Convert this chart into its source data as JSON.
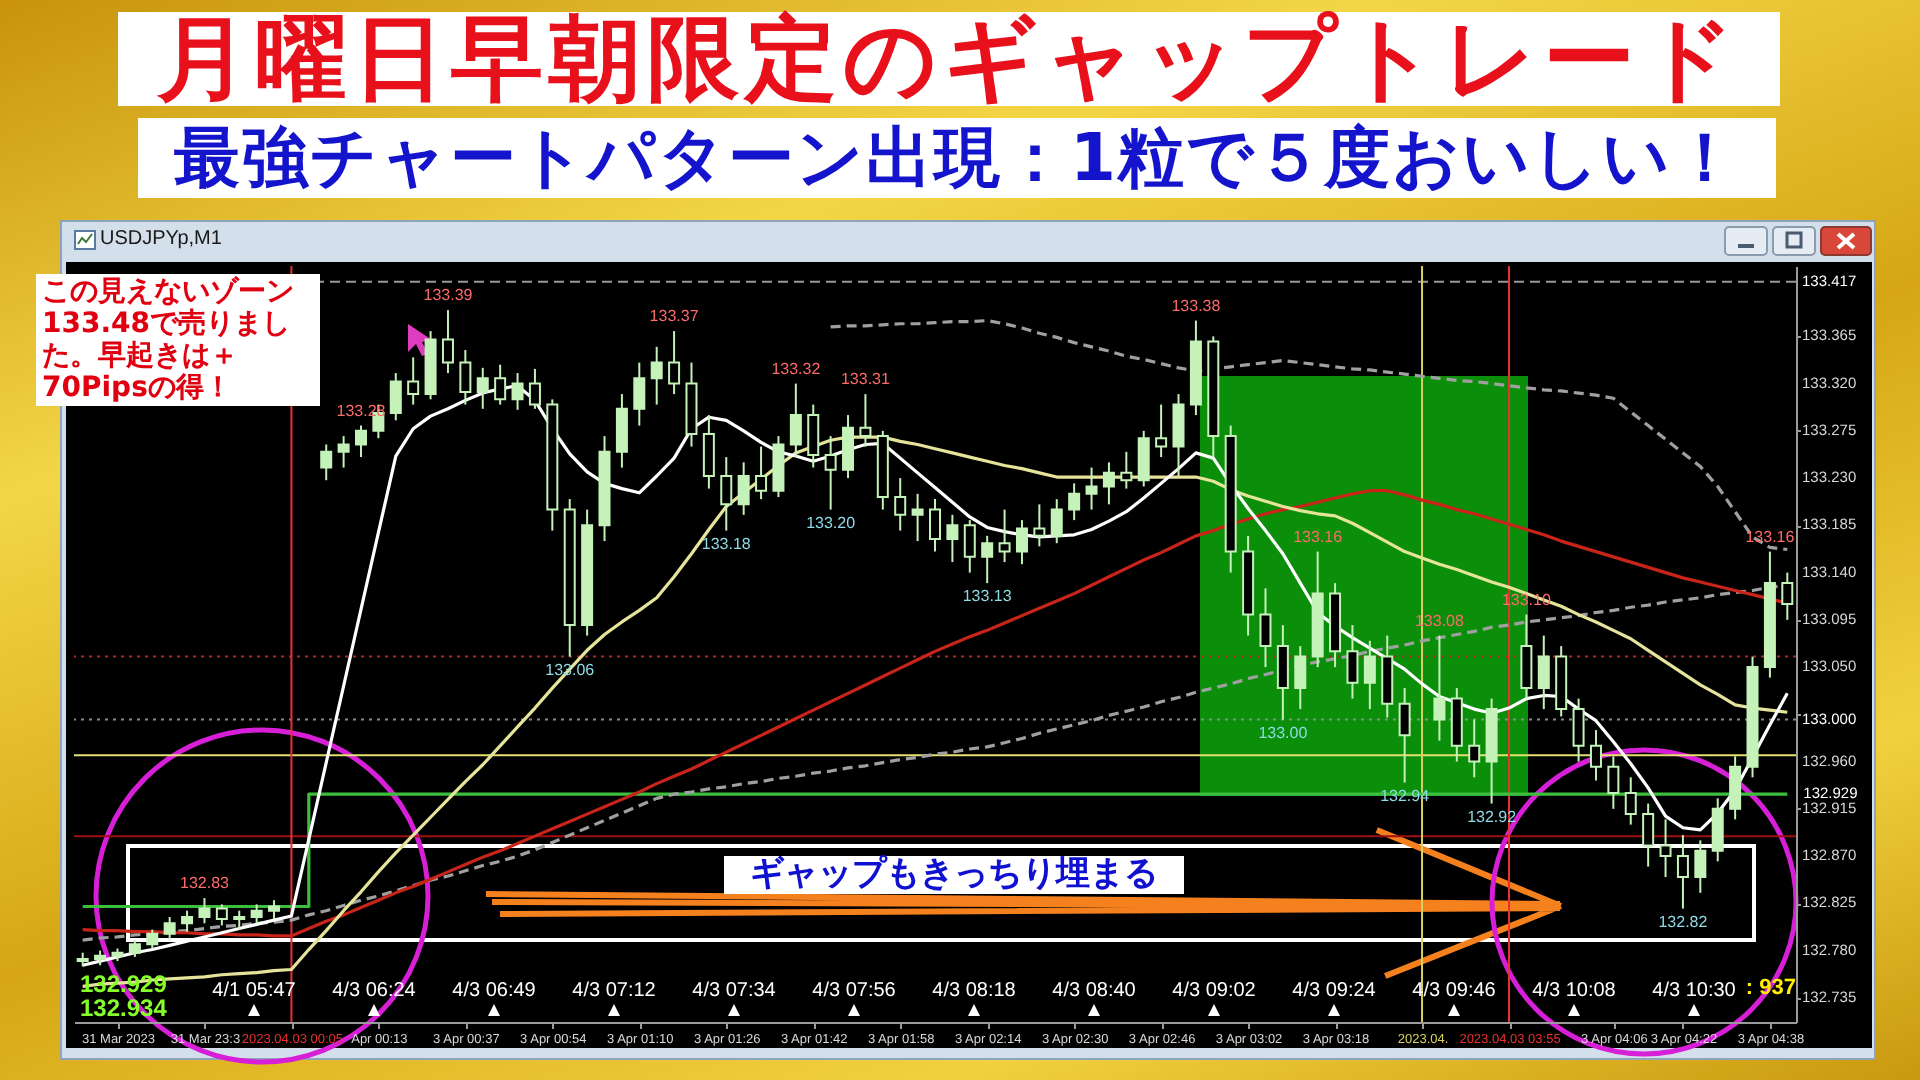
{
  "chart_data": {
    "type": "candlestick",
    "title": "月曜日早朝限定のギャップトレード",
    "subtitle": "最強チャートパターン出現：1粒で５度おいしい！",
    "color": "#c4f2b8",
    "categories": [
      null,
      null,
      "31 Mar 2023",
      null,
      null,
      null,
      null,
      "31 Mar 23:3",
      null,
      null,
      null,
      null,
      "2023.04.03 00:05",
      null,
      null,
      null,
      null,
      "Apr 00:13",
      null,
      null,
      null,
      null,
      "3 Apr 00:37",
      null,
      null,
      null,
      null,
      "3 Apr 00:54",
      null,
      null,
      null,
      null,
      "3 Apr 01:10",
      null,
      null,
      null,
      null,
      "3 Apr 01:26",
      null,
      null,
      null,
      null,
      "3 Apr 01:42",
      null,
      null,
      null,
      null,
      "3 Apr 01:58",
      null,
      null,
      null,
      null,
      "3 Apr 02:14",
      null,
      null,
      null,
      null,
      "3 Apr 02:30",
      null,
      null,
      null,
      null,
      "3 Apr 02:46",
      null,
      null,
      null,
      null,
      "3 Apr 03:02",
      null,
      null,
      null,
      null,
      "3 Apr 03:18",
      null,
      null,
      null,
      null,
      "2023.04.",
      null,
      null,
      null,
      null,
      "2023.04.03 03:55",
      null,
      null,
      null,
      null,
      null,
      "3 Apr 04:06",
      null,
      null,
      null,
      "3 Apr 04:22",
      null,
      null,
      null,
      null,
      "3 Apr 04:38",
      null
    ],
    "ohlc": [
      [
        132.77,
        132.778,
        132.765,
        132.772
      ],
      [
        132.772,
        132.78,
        132.766,
        132.775
      ],
      [
        132.775,
        132.782,
        132.77,
        132.778
      ],
      [
        132.778,
        132.79,
        132.774,
        132.786
      ],
      [
        132.786,
        132.8,
        132.782,
        132.796
      ],
      [
        132.796,
        132.812,
        132.79,
        132.806
      ],
      [
        132.806,
        132.818,
        132.798,
        132.812
      ],
      [
        132.812,
        132.83,
        132.806,
        132.82
      ],
      [
        132.82,
        132.824,
        132.804,
        132.81
      ],
      [
        132.81,
        132.818,
        132.8,
        132.812
      ],
      [
        132.812,
        132.824,
        132.806,
        132.818
      ],
      [
        132.818,
        132.828,
        132.81,
        132.822
      ],
      null,
      null,
      [
        133.24,
        133.262,
        133.228,
        133.255
      ],
      [
        133.255,
        133.27,
        133.24,
        133.262
      ],
      [
        133.262,
        133.28,
        133.25,
        133.275
      ],
      [
        133.275,
        133.3,
        133.268,
        133.292
      ],
      [
        133.292,
        133.33,
        133.285,
        133.322
      ],
      [
        133.322,
        133.345,
        133.3,
        133.31
      ],
      [
        133.31,
        133.37,
        133.305,
        133.362
      ],
      [
        133.362,
        133.39,
        133.33,
        133.34
      ],
      [
        133.34,
        133.352,
        133.3,
        133.312
      ],
      [
        133.312,
        133.335,
        133.296,
        133.325
      ],
      [
        133.325,
        133.338,
        133.3,
        133.305
      ],
      [
        133.305,
        133.33,
        133.295,
        133.32
      ],
      [
        133.32,
        133.334,
        133.296,
        133.3
      ],
      [
        133.3,
        133.305,
        133.18,
        133.2
      ],
      [
        133.2,
        133.21,
        133.06,
        133.09
      ],
      [
        133.09,
        133.2,
        133.08,
        133.185
      ],
      [
        133.185,
        133.27,
        133.17,
        133.255
      ],
      [
        133.255,
        133.31,
        133.24,
        133.296
      ],
      [
        133.296,
        133.34,
        133.28,
        133.325
      ],
      [
        133.325,
        133.355,
        133.3,
        133.34
      ],
      [
        133.34,
        133.37,
        133.31,
        133.32
      ],
      [
        133.32,
        133.34,
        133.26,
        133.272
      ],
      [
        133.272,
        133.29,
        133.22,
        133.232
      ],
      [
        133.232,
        133.25,
        133.18,
        133.205
      ],
      [
        133.205,
        133.245,
        133.195,
        133.232
      ],
      [
        133.232,
        133.26,
        133.21,
        133.218
      ],
      [
        133.218,
        133.27,
        133.212,
        133.262
      ],
      [
        133.262,
        133.32,
        133.25,
        133.29
      ],
      [
        133.29,
        133.3,
        133.24,
        133.252
      ],
      [
        133.252,
        133.27,
        133.2,
        133.238
      ],
      [
        133.238,
        133.29,
        133.23,
        133.278
      ],
      [
        133.278,
        133.31,
        133.26,
        133.27
      ],
      [
        133.27,
        133.275,
        133.2,
        133.212
      ],
      [
        133.212,
        133.23,
        133.18,
        133.195
      ],
      [
        133.195,
        133.215,
        133.17,
        133.2
      ],
      [
        133.2,
        133.21,
        133.16,
        133.172
      ],
      [
        133.172,
        133.195,
        133.15,
        133.185
      ],
      [
        133.185,
        133.19,
        133.14,
        133.155
      ],
      [
        133.155,
        133.175,
        133.13,
        133.168
      ],
      [
        133.168,
        133.2,
        133.15,
        133.16
      ],
      [
        133.16,
        133.19,
        133.148,
        133.182
      ],
      [
        133.182,
        133.205,
        133.165,
        133.175
      ],
      [
        133.175,
        133.21,
        133.168,
        133.2
      ],
      [
        133.2,
        133.225,
        133.19,
        133.215
      ],
      [
        133.215,
        133.24,
        133.2,
        133.222
      ],
      [
        133.222,
        133.245,
        133.205,
        133.235
      ],
      [
        133.235,
        133.255,
        133.22,
        133.228
      ],
      [
        133.228,
        133.275,
        133.222,
        133.268
      ],
      [
        133.268,
        133.3,
        133.25,
        133.26
      ],
      [
        133.26,
        133.31,
        133.232,
        133.3
      ],
      [
        133.3,
        133.38,
        133.29,
        133.36
      ],
      [
        133.36,
        133.365,
        133.25,
        133.27
      ],
      [
        133.27,
        133.28,
        133.14,
        133.16
      ],
      [
        133.16,
        133.175,
        133.08,
        133.1
      ],
      [
        133.1,
        133.125,
        133.05,
        133.07
      ],
      [
        133.07,
        133.09,
        133.0,
        133.03
      ],
      [
        133.03,
        133.07,
        133.01,
        133.06
      ],
      [
        133.06,
        133.16,
        133.05,
        133.12
      ],
      [
        133.12,
        133.13,
        133.05,
        133.065
      ],
      [
        133.065,
        133.09,
        133.02,
        133.035
      ],
      [
        133.035,
        133.075,
        133.01,
        133.06
      ],
      [
        133.06,
        133.08,
        133.002,
        133.015
      ],
      [
        133.015,
        133.03,
        132.94,
        132.985
      ],
      null,
      [
        133.0,
        133.08,
        132.98,
        133.02
      ],
      [
        133.02,
        133.03,
        132.96,
        132.975
      ],
      [
        132.975,
        133.0,
        132.945,
        132.96
      ],
      [
        132.96,
        133.02,
        132.92,
        133.01
      ],
      null,
      [
        133.07,
        133.1,
        133.02,
        133.03
      ],
      [
        133.03,
        133.08,
        133.01,
        133.06
      ],
      [
        133.06,
        133.07,
        133.003,
        133.01
      ],
      [
        133.01,
        133.02,
        132.96,
        132.975
      ],
      [
        132.975,
        132.99,
        132.942,
        132.955
      ],
      [
        132.955,
        132.965,
        132.915,
        132.93
      ],
      [
        132.93,
        132.945,
        132.9,
        132.91
      ],
      [
        132.91,
        132.92,
        132.86,
        132.88
      ],
      [
        132.88,
        132.905,
        132.85,
        132.87
      ],
      [
        132.87,
        132.89,
        132.82,
        132.85
      ],
      [
        132.85,
        132.885,
        132.835,
        132.875
      ],
      [
        132.875,
        132.925,
        132.865,
        132.915
      ],
      [
        132.915,
        132.965,
        132.905,
        132.955
      ],
      [
        132.955,
        133.06,
        132.945,
        133.05
      ],
      [
        133.05,
        133.16,
        133.04,
        133.13
      ],
      [
        133.13,
        133.14,
        133.095,
        133.11
      ]
    ],
    "series": [
      {
        "type": "step",
        "color": "#3cbf3c",
        "values": [
          132.822,
          132.822,
          132.822,
          132.822,
          132.822,
          132.822,
          132.822,
          132.822,
          132.822,
          132.822,
          132.822,
          132.822,
          132.822,
          132.929,
          132.929,
          132.929,
          132.929,
          132.929,
          132.929,
          132.929,
          132.929,
          132.929,
          132.929,
          132.929,
          132.929,
          132.929,
          132.929,
          132.929,
          132.929,
          132.929,
          132.929,
          132.929,
          132.929,
          132.929,
          132.929,
          132.929,
          132.929,
          132.929,
          132.929,
          132.929,
          132.929,
          132.929,
          132.929,
          132.929,
          132.929,
          132.929,
          132.929,
          132.929,
          132.929,
          132.929,
          132.929,
          132.929,
          132.929,
          132.929,
          132.929,
          132.929,
          132.929,
          132.929,
          132.929,
          132.929,
          132.929,
          132.929,
          132.929,
          132.929,
          132.929,
          132.929,
          132.929,
          132.929,
          132.929,
          132.929,
          132.929,
          132.929,
          132.929,
          132.929,
          132.929,
          132.929,
          132.929,
          132.929,
          132.929,
          132.929,
          132.929,
          132.929,
          132.929,
          132.929,
          132.929,
          132.929,
          132.929,
          132.929,
          132.929,
          132.929,
          132.929,
          132.929,
          132.929,
          132.929,
          132.929,
          132.929,
          132.929,
          132.929,
          132.929
        ],
        "value_labels": [
          null,
          null,
          null,
          null,
          null,
          null,
          null,
          null,
          null,
          null,
          null,
          null,
          null,
          null,
          null,
          null,
          null,
          null,
          null,
          null,
          null,
          null,
          null,
          null,
          null,
          null,
          null,
          null,
          null,
          null,
          null,
          null,
          null,
          null,
          null,
          null,
          null,
          null,
          null,
          null,
          null,
          null,
          null,
          null,
          null,
          null,
          null,
          null,
          null,
          null,
          null,
          null,
          null,
          null,
          null,
          null,
          null,
          null,
          null,
          null,
          null,
          null,
          null,
          null,
          null,
          null,
          null,
          null,
          null,
          null,
          null,
          null,
          null,
          null,
          null,
          null,
          null,
          null,
          null,
          null,
          null,
          null,
          null,
          null,
          null,
          null,
          null,
          null,
          null,
          null,
          null,
          null,
          null,
          null,
          null,
          null,
          null,
          null,
          "132.929"
        ]
      },
      {
        "type": "line",
        "color": "#a0a0a0",
        "line_style": "dashed",
        "values": [
          132.79,
          132.792,
          132.793,
          132.795,
          132.796,
          132.798,
          132.799,
          132.801,
          132.803,
          132.804,
          132.806,
          132.807,
          132.809,
          132.814,
          132.818,
          132.823,
          132.828,
          132.832,
          132.837,
          132.842,
          132.847,
          132.851,
          132.856,
          132.861,
          132.865,
          132.87,
          132.876,
          132.883,
          132.89,
          132.897,
          132.904,
          132.911,
          132.918,
          132.925,
          132.929,
          132.931,
          132.934,
          132.936,
          132.939,
          132.941,
          132.944,
          132.946,
          132.949,
          132.951,
          132.954,
          132.956,
          132.959,
          132.962,
          132.964,
          132.967,
          132.969,
          132.972,
          132.974,
          132.978,
          132.982,
          132.987,
          132.991,
          132.995,
          132.999,
          133.004,
          133.008,
          133.012,
          133.017,
          133.021,
          133.026,
          133.03,
          133.034,
          133.039,
          133.043,
          133.047,
          133.052,
          133.055,
          133.058,
          133.061,
          133.065,
          133.068,
          133.071,
          133.075,
          133.078,
          133.081,
          133.084,
          133.088,
          133.09,
          133.093,
          133.095,
          133.097,
          133.099,
          133.102,
          133.104,
          133.107,
          133.109,
          133.112,
          133.114,
          133.116,
          133.119,
          133.121,
          133.123,
          133.126,
          133.128
        ]
      },
      {
        "type": "line",
        "color": "#a0a0a0",
        "line_style": "dashed",
        "values": [
          null,
          null,
          null,
          null,
          null,
          null,
          null,
          null,
          null,
          null,
          null,
          null,
          null,
          null,
          null,
          null,
          null,
          null,
          null,
          null,
          null,
          null,
          null,
          null,
          null,
          null,
          null,
          null,
          null,
          null,
          null,
          null,
          null,
          null,
          null,
          null,
          null,
          null,
          null,
          null,
          null,
          null,
          null,
          133.374,
          133.375,
          133.375,
          133.376,
          133.377,
          133.377,
          133.378,
          133.379,
          133.379,
          133.38,
          133.377,
          133.373,
          133.368,
          133.364,
          133.359,
          133.355,
          133.351,
          133.346,
          133.343,
          133.339,
          133.335,
          133.332,
          133.334,
          133.336,
          133.338,
          133.34,
          133.342,
          133.34,
          133.338,
          133.336,
          133.334,
          133.333,
          133.331,
          133.329,
          133.327,
          133.325,
          133.323,
          133.322,
          133.32,
          133.318,
          133.316,
          133.314,
          133.313,
          133.311,
          133.309,
          133.306,
          133.293,
          133.28,
          133.267,
          133.254,
          133.241,
          133.222,
          133.198,
          133.174,
          133.164,
          133.162
        ]
      },
      {
        "type": "line",
        "color": "#c8241a",
        "values": [
          132.8,
          132.799,
          132.799,
          132.798,
          132.798,
          132.797,
          132.797,
          132.796,
          132.796,
          132.795,
          132.795,
          132.794,
          132.794,
          132.801,
          132.808,
          132.814,
          132.821,
          132.828,
          132.835,
          132.841,
          132.848,
          132.855,
          132.862,
          132.869,
          132.875,
          132.882,
          132.889,
          132.896,
          132.903,
          132.91,
          132.917,
          132.924,
          132.931,
          132.939,
          132.946,
          132.953,
          132.961,
          132.969,
          132.977,
          132.985,
          132.993,
          133.001,
          133.009,
          133.017,
          133.025,
          133.033,
          133.041,
          133.049,
          133.057,
          133.065,
          133.072,
          133.079,
          133.085,
          133.092,
          133.099,
          133.106,
          133.113,
          133.12,
          133.128,
          133.136,
          133.144,
          133.152,
          133.159,
          133.167,
          133.175,
          133.18,
          133.186,
          133.191,
          133.196,
          133.2,
          133.203,
          133.207,
          133.211,
          133.215,
          133.218,
          133.218,
          133.214,
          133.209,
          133.205,
          133.2,
          133.196,
          133.191,
          133.186,
          133.181,
          133.176,
          133.17,
          133.165,
          133.16,
          133.155,
          133.15,
          133.145,
          133.14,
          133.135,
          133.131,
          133.127,
          133.123,
          133.119,
          133.115,
          133.111
        ]
      },
      {
        "type": "line",
        "color": "#e6e49a",
        "values": [
          132.746,
          132.748,
          132.749,
          132.75,
          132.752,
          132.753,
          132.754,
          132.755,
          132.757,
          132.758,
          132.759,
          132.761,
          132.762,
          132.781,
          132.799,
          132.818,
          132.836,
          132.855,
          132.873,
          132.89,
          132.907,
          132.924,
          132.941,
          132.957,
          132.975,
          132.993,
          133.011,
          133.03,
          133.048,
          133.066,
          133.081,
          133.093,
          133.104,
          133.116,
          133.136,
          133.158,
          133.181,
          133.203,
          133.216,
          133.229,
          133.242,
          133.254,
          133.26,
          133.266,
          133.269,
          133.269,
          133.269,
          133.265,
          133.262,
          133.258,
          133.254,
          133.25,
          133.246,
          133.242,
          133.239,
          133.235,
          133.231,
          133.231,
          133.231,
          133.231,
          133.231,
          133.231,
          133.231,
          133.231,
          133.231,
          133.227,
          133.219,
          133.213,
          133.208,
          133.203,
          133.199,
          133.196,
          133.194,
          133.187,
          133.178,
          133.169,
          133.16,
          133.154,
          133.148,
          133.143,
          133.137,
          133.131,
          133.126,
          133.12,
          133.114,
          133.108,
          133.1,
          133.093,
          133.085,
          133.077,
          133.066,
          133.055,
          133.044,
          133.033,
          133.024,
          133.014,
          133.011,
          133.009,
          133.007
        ]
      },
      {
        "type": "line",
        "color": "#ffffff",
        "values": [
          132.766,
          132.77,
          132.774,
          132.778,
          132.781,
          132.785,
          132.789,
          132.793,
          132.797,
          132.801,
          132.805,
          132.809,
          132.813,
          132.886,
          132.959,
          133.032,
          133.105,
          133.178,
          133.251,
          133.277,
          133.289,
          133.296,
          133.304,
          133.311,
          133.315,
          133.318,
          133.304,
          133.277,
          133.253,
          133.236,
          133.225,
          133.22,
          133.216,
          133.232,
          133.249,
          133.277,
          133.288,
          133.285,
          133.275,
          133.264,
          133.255,
          133.251,
          133.246,
          133.251,
          133.257,
          133.262,
          133.263,
          133.249,
          133.235,
          133.221,
          133.207,
          133.193,
          133.183,
          133.179,
          133.176,
          133.174,
          133.175,
          133.176,
          133.181,
          133.189,
          133.198,
          133.211,
          133.225,
          133.239,
          133.254,
          133.249,
          133.224,
          133.201,
          133.18,
          133.158,
          133.13,
          133.102,
          133.089,
          133.078,
          133.068,
          133.058,
          133.048,
          133.034,
          133.022,
          133.016,
          133.01,
          133.006,
          133.011,
          133.02,
          133.023,
          133.022,
          133.01,
          132.999,
          132.979,
          132.958,
          132.935,
          132.908,
          132.897,
          132.895,
          132.911,
          132.933,
          132.964,
          132.995,
          133.025
        ]
      }
    ],
    "ylim": [
      132.712,
      133.432
    ],
    "yticks": [
      132.735,
      {
        "value": 132.78,
        "label": "132.780"
      },
      132.825,
      {
        "value": 132.87,
        "label": "132.870"
      },
      132.915,
      {
        "value": 132.96,
        "label": "132.960"
      },
      {
        "value": 133.005,
        "label": null
      },
      {
        "value": 133.05,
        "label": "133.050"
      },
      133.095,
      {
        "value": 133.14,
        "label": "133.140"
      },
      133.185,
      {
        "value": 133.23,
        "label": "133.230"
      },
      133.275,
      {
        "value": 133.32,
        "label": "133.320"
      },
      133.365
    ],
    "ref_lines": [
      {
        "axis": "y",
        "value": 133.417,
        "label": "133.417",
        "color": "#9a9a9a",
        "line_style": "dashed"
      },
      {
        "axis": "y",
        "value": 133.06,
        "color": "#c02020",
        "line_style": "dotted"
      },
      {
        "axis": "y",
        "value": 133.0,
        "label": "133.000",
        "color": "#8a8a8a",
        "line_style": "dotted"
      },
      {
        "axis": "y",
        "value": 132.966,
        "color": "#e6e070"
      },
      {
        "axis": "y",
        "value": 132.889,
        "color": "#a01010"
      },
      {
        "axis": "x",
        "value": "2023.04.03 00:05",
        "color": "#e83030"
      },
      {
        "axis": "x",
        "value": "2023.04.",
        "color": "#d8d060"
      },
      {
        "axis": "x",
        "value": "2023.04.03 03:55",
        "color": "#e83030"
      }
    ],
    "annotations": [
      "USDJPYp,M1",
      "この見えないゾーン133.48で売りました。早起きは＋70Pipsの得！",
      "ギャップもきっちり埋まる",
      "132.929",
      "132.934",
      ": 937",
      "4/1 05:47",
      "4/3 06:24",
      "4/3 06:49",
      "4/3 07:12",
      "4/3 07:34",
      "4/3 07:56",
      "4/3 08:18",
      "4/3 08:40",
      "4/3 09:02",
      "4/3 09:24",
      "4/3 09:46",
      "4/3 10:08",
      "4/3 10:30",
      {
        "text": "132.83",
        "y": 132.83
      },
      {
        "text": "133.28",
        "y": 133.28
      },
      {
        "text": "133.39",
        "y": 133.39
      },
      {
        "text": "133.06",
        "y": 133.06
      },
      {
        "text": "133.37",
        "y": 133.37
      },
      {
        "text": "133.18",
        "y": 133.18
      },
      {
        "text": "133.32",
        "y": 133.32
      },
      {
        "text": "133.20",
        "y": 133.2
      },
      {
        "text": "133.31",
        "y": 133.31
      },
      {
        "text": "133.13",
        "y": 133.13
      },
      {
        "text": "133.38",
        "y": 133.38
      },
      {
        "text": "133.00",
        "y": 133.0
      },
      {
        "text": "133.16",
        "y": 133.16
      },
      {
        "text": "132.94",
        "y": 132.94
      },
      {
        "text": "133.08",
        "y": 133.08
      },
      {
        "text": "132.92",
        "y": 132.92
      },
      {
        "text": "133.10",
        "y": 133.1
      },
      {
        "text": "132.82",
        "y": 132.82
      },
      {
        "text": "133.16",
        "y": 133.16
      }
    ]
  }
}
